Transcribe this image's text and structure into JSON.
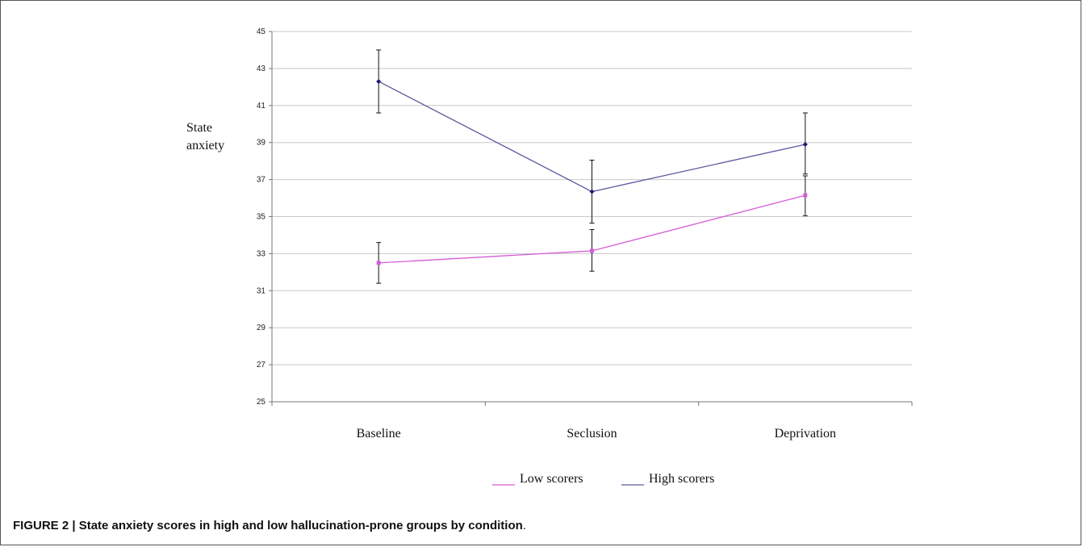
{
  "chart_data": {
    "type": "line",
    "ylabel_line1": "State",
    "ylabel_line2": "anxiety",
    "xlabel": "",
    "categories": [
      "Baseline",
      "Seclusion",
      "Deprivation"
    ],
    "ylim": [
      25,
      45
    ],
    "yticks": [
      25,
      27,
      29,
      31,
      33,
      35,
      37,
      39,
      41,
      43,
      45
    ],
    "grid": true,
    "legend_position": "bottom",
    "series": [
      {
        "name": "Low scorers",
        "color": "#d65cd6",
        "marker": "square",
        "values": [
          32.5,
          33.15,
          36.15
        ],
        "err_low": [
          31.4,
          32.05,
          35.05
        ],
        "err_high": [
          33.6,
          34.3,
          37.2
        ]
      },
      {
        "name": "High scorers",
        "color": "#5a5aa0",
        "marker": "diamond",
        "values": [
          42.3,
          36.35,
          38.9
        ],
        "err_low": [
          40.6,
          34.65,
          37.3
        ],
        "err_high": [
          44.0,
          38.05,
          40.6
        ]
      }
    ]
  },
  "caption": {
    "bold": "FIGURE 2 | State anxiety scores in high and low hallucination-prone groups by condition",
    "rest": "."
  }
}
